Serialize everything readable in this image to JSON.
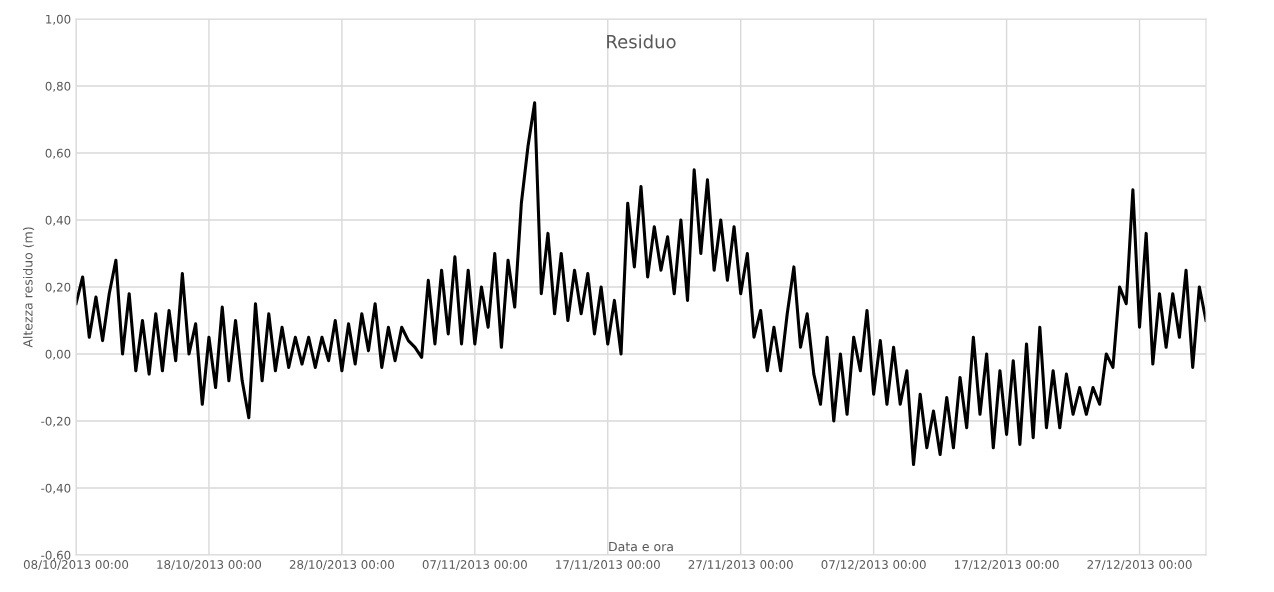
{
  "chart_data": {
    "type": "line",
    "title": "Residuo",
    "xlabel": "Data e ora",
    "ylabel": "Altezza residuo (m)",
    "x": [
      "2013-10-08T00:00",
      "2013-10-08T12:00",
      "2013-10-09T00:00",
      "2013-10-09T12:00",
      "2013-10-10T00:00",
      "2013-10-10T12:00",
      "2013-10-11T00:00",
      "2013-10-11T12:00",
      "2013-10-12T00:00",
      "2013-10-12T12:00",
      "2013-10-13T00:00",
      "2013-10-13T12:00",
      "2013-10-14T00:00",
      "2013-10-14T12:00",
      "2013-10-15T00:00",
      "2013-10-15T12:00",
      "2013-10-16T00:00",
      "2013-10-16T12:00",
      "2013-10-17T00:00",
      "2013-10-17T12:00",
      "2013-10-18T00:00",
      "2013-10-18T12:00",
      "2013-10-19T00:00",
      "2013-10-19T12:00",
      "2013-10-20T00:00",
      "2013-10-20T12:00",
      "2013-10-21T00:00",
      "2013-10-21T12:00",
      "2013-10-22T00:00",
      "2013-10-22T12:00",
      "2013-10-23T00:00",
      "2013-10-23T12:00",
      "2013-10-24T00:00",
      "2013-10-24T12:00",
      "2013-10-25T00:00",
      "2013-10-25T12:00",
      "2013-10-26T00:00",
      "2013-10-26T12:00",
      "2013-10-27T00:00",
      "2013-10-27T12:00",
      "2013-10-28T00:00",
      "2013-10-28T12:00",
      "2013-10-29T00:00",
      "2013-10-29T12:00",
      "2013-10-30T00:00",
      "2013-10-30T12:00",
      "2013-10-31T00:00",
      "2013-10-31T12:00",
      "2013-11-01T00:00",
      "2013-11-01T12:00",
      "2013-11-02T00:00",
      "2013-11-02T12:00",
      "2013-11-03T00:00",
      "2013-11-03T12:00",
      "2013-11-04T00:00",
      "2013-11-04T12:00",
      "2013-11-05T00:00",
      "2013-11-05T12:00",
      "2013-11-06T00:00",
      "2013-11-06T12:00",
      "2013-11-07T00:00",
      "2013-11-07T12:00",
      "2013-11-08T00:00",
      "2013-11-08T12:00",
      "2013-11-09T00:00",
      "2013-11-09T12:00",
      "2013-11-10T00:00",
      "2013-11-10T12:00",
      "2013-11-11T00:00",
      "2013-11-11T12:00",
      "2013-11-12T00:00",
      "2013-11-12T12:00",
      "2013-11-13T00:00",
      "2013-11-13T12:00",
      "2013-11-14T00:00",
      "2013-11-14T12:00",
      "2013-11-15T00:00",
      "2013-11-15T12:00",
      "2013-11-16T00:00",
      "2013-11-16T12:00",
      "2013-11-17T00:00",
      "2013-11-17T12:00",
      "2013-11-18T00:00",
      "2013-11-18T12:00",
      "2013-11-19T00:00",
      "2013-11-19T12:00",
      "2013-11-20T00:00",
      "2013-11-20T12:00",
      "2013-11-21T00:00",
      "2013-11-21T12:00",
      "2013-11-22T00:00",
      "2013-11-22T12:00",
      "2013-11-23T00:00",
      "2013-11-23T12:00",
      "2013-11-24T00:00",
      "2013-11-24T12:00",
      "2013-11-25T00:00",
      "2013-11-25T12:00",
      "2013-11-26T00:00",
      "2013-11-26T12:00",
      "2013-11-27T00:00",
      "2013-11-27T12:00",
      "2013-11-28T00:00",
      "2013-11-28T12:00",
      "2013-11-29T00:00",
      "2013-11-29T12:00",
      "2013-11-30T00:00",
      "2013-11-30T12:00",
      "2013-12-01T00:00",
      "2013-12-01T12:00",
      "2013-12-02T00:00",
      "2013-12-02T12:00",
      "2013-12-03T00:00",
      "2013-12-03T12:00",
      "2013-12-04T00:00",
      "2013-12-04T12:00",
      "2013-12-05T00:00",
      "2013-12-05T12:00",
      "2013-12-06T00:00",
      "2013-12-06T12:00",
      "2013-12-07T00:00",
      "2013-12-07T12:00",
      "2013-12-08T00:00",
      "2013-12-08T12:00",
      "2013-12-09T00:00",
      "2013-12-09T12:00",
      "2013-12-10T00:00",
      "2013-12-10T12:00",
      "2013-12-11T00:00",
      "2013-12-11T12:00",
      "2013-12-12T00:00",
      "2013-12-12T12:00",
      "2013-12-13T00:00",
      "2013-12-13T12:00",
      "2013-12-14T00:00",
      "2013-12-14T12:00",
      "2013-12-15T00:00",
      "2013-12-15T12:00",
      "2013-12-16T00:00",
      "2013-12-16T12:00",
      "2013-12-17T00:00",
      "2013-12-17T12:00",
      "2013-12-18T00:00",
      "2013-12-18T12:00",
      "2013-12-19T00:00",
      "2013-12-19T12:00",
      "2013-12-20T00:00",
      "2013-12-20T12:00",
      "2013-12-21T00:00",
      "2013-12-21T12:00",
      "2013-12-22T00:00",
      "2013-12-22T12:00",
      "2013-12-23T00:00",
      "2013-12-23T12:00",
      "2013-12-24T00:00",
      "2013-12-24T12:00",
      "2013-12-25T00:00",
      "2013-12-25T12:00",
      "2013-12-26T00:00",
      "2013-12-26T12:00",
      "2013-12-27T00:00",
      "2013-12-27T12:00",
      "2013-12-28T00:00",
      "2013-12-28T12:00",
      "2013-12-29T00:00",
      "2013-12-29T12:00",
      "2013-12-30T00:00",
      "2013-12-30T12:00",
      "2013-12-31T00:00",
      "2013-12-31T12:00",
      "2014-01-01T00:00"
    ],
    "series": [
      {
        "color": "#000000",
        "values": [
          0.15,
          0.23,
          0.05,
          0.17,
          0.04,
          0.18,
          0.28,
          0.0,
          0.18,
          -0.05,
          0.1,
          -0.06,
          0.12,
          -0.05,
          0.13,
          -0.02,
          0.24,
          0.0,
          0.09,
          -0.15,
          0.05,
          -0.1,
          0.14,
          -0.08,
          0.1,
          -0.08,
          -0.19,
          0.15,
          -0.08,
          0.12,
          -0.05,
          0.08,
          -0.04,
          0.05,
          -0.03,
          0.05,
          -0.04,
          0.05,
          -0.02,
          0.1,
          -0.05,
          0.09,
          -0.03,
          0.12,
          0.01,
          0.15,
          -0.04,
          0.08,
          -0.02,
          0.08,
          0.04,
          0.02,
          -0.01,
          0.22,
          0.03,
          0.25,
          0.06,
          0.29,
          0.03,
          0.25,
          0.03,
          0.2,
          0.08,
          0.3,
          0.02,
          0.28,
          0.14,
          0.45,
          0.62,
          0.75,
          0.18,
          0.36,
          0.12,
          0.3,
          0.1,
          0.25,
          0.12,
          0.24,
          0.06,
          0.2,
          0.03,
          0.16,
          0.0,
          0.45,
          0.26,
          0.5,
          0.23,
          0.38,
          0.25,
          0.35,
          0.18,
          0.4,
          0.16,
          0.55,
          0.3,
          0.52,
          0.25,
          0.4,
          0.22,
          0.38,
          0.18,
          0.3,
          0.05,
          0.13,
          -0.05,
          0.08,
          -0.05,
          0.12,
          0.26,
          0.02,
          0.12,
          -0.06,
          -0.15,
          0.05,
          -0.2,
          0.0,
          -0.18,
          0.05,
          -0.05,
          0.13,
          -0.12,
          0.04,
          -0.15,
          0.02,
          -0.15,
          -0.05,
          -0.33,
          -0.12,
          -0.28,
          -0.17,
          -0.3,
          -0.13,
          -0.28,
          -0.07,
          -0.22,
          0.05,
          -0.18,
          0.0,
          -0.28,
          -0.05,
          -0.24,
          -0.02,
          -0.27,
          0.03,
          -0.25,
          0.08,
          -0.22,
          -0.05,
          -0.22,
          -0.06,
          -0.18,
          -0.1,
          -0.18,
          -0.1,
          -0.15,
          0.0,
          -0.04,
          0.2,
          0.15,
          0.49,
          0.08,
          0.36,
          -0.03,
          0.18,
          0.02,
          0.18,
          0.05,
          0.25,
          -0.04,
          0.2,
          0.1
        ]
      }
    ],
    "xlim": [
      "2013-10-08",
      "2014-01-01"
    ],
    "xticks": [
      {
        "value": "2013-10-08",
        "label": "08/10/2013 00:00"
      },
      {
        "value": "2013-10-18",
        "label": "18/10/2013 00:00"
      },
      {
        "value": "2013-10-28",
        "label": "28/10/2013 00:00"
      },
      {
        "value": "2013-11-07",
        "label": "07/11/2013 00:00"
      },
      {
        "value": "2013-11-17",
        "label": "17/11/2013 00:00"
      },
      {
        "value": "2013-11-27",
        "label": "27/11/2013 00:00"
      },
      {
        "value": "2013-12-07",
        "label": "07/12/2013 00:00"
      },
      {
        "value": "2013-12-17",
        "label": "17/12/2013 00:00"
      },
      {
        "value": "2013-12-27",
        "label": "27/12/2013 00:00"
      }
    ],
    "ylim": [
      -0.6,
      1.0
    ],
    "yticks": [
      {
        "value": -0.6,
        "label": "-0,60"
      },
      {
        "value": -0.4,
        "label": "-0,40"
      },
      {
        "value": -0.2,
        "label": "-0,20"
      },
      {
        "value": 0,
        "label": "0,00"
      },
      {
        "value": 0.2,
        "label": "0,20"
      },
      {
        "value": 0.4,
        "label": "0,40"
      },
      {
        "value": 0.6,
        "label": "0,60"
      },
      {
        "value": 0.8,
        "label": "0,80"
      },
      {
        "value": 1.0,
        "label": "1,00"
      }
    ],
    "grid": true,
    "marker": "none",
    "line_style": "solid"
  }
}
